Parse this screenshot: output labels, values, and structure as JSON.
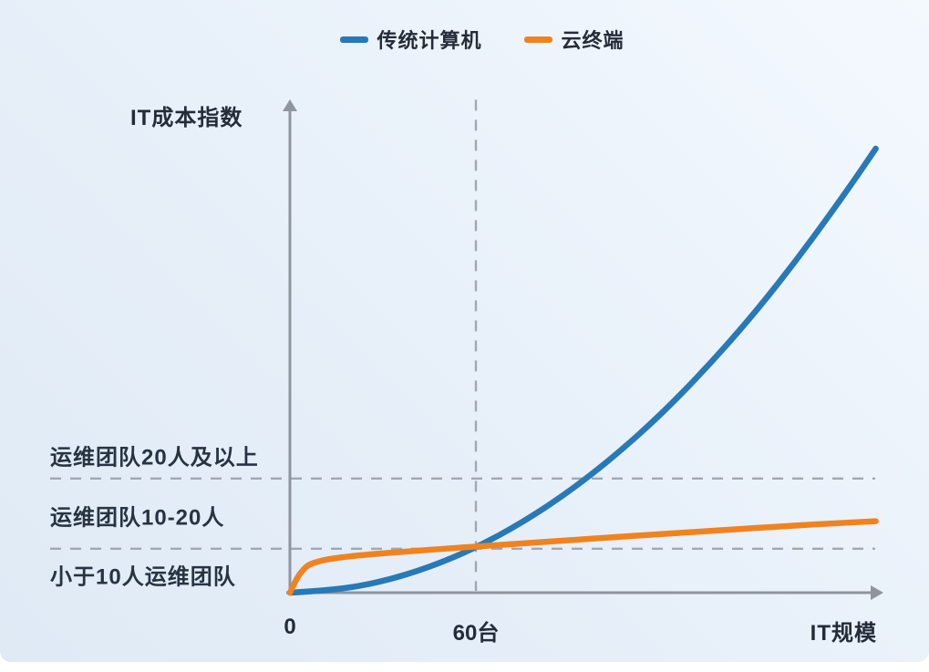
{
  "chart_data": {
    "type": "line",
    "title": "",
    "xlabel": "IT规模",
    "ylabel": "IT成本指数",
    "x_unit": "台",
    "legend_position": "top-center",
    "grid": "off",
    "axis_color": "#8e959e",
    "guide_color": "#a2a8b0",
    "text_color": "#232c38",
    "xlim": [
      0,
      191
    ],
    "ylim": [
      0,
      111
    ],
    "x_ticks": [
      {
        "value": 0,
        "label": "0"
      },
      {
        "value": 60,
        "label": "60台"
      }
    ],
    "series": [
      {
        "name": "传统计算机",
        "color": "#2779b7",
        "points": [
          [
            0,
            0
          ],
          [
            15,
            0.6
          ],
          [
            30,
            2.5
          ],
          [
            45,
            5.7
          ],
          [
            60,
            10.1
          ],
          [
            75,
            15.8
          ],
          [
            90,
            22.7
          ],
          [
            105,
            30.9
          ],
          [
            120,
            40.3
          ],
          [
            135,
            51.1
          ],
          [
            150,
            63.0
          ],
          [
            165,
            76.3
          ],
          [
            180,
            90.8
          ],
          [
            189,
            100
          ]
        ]
      },
      {
        "name": "云终端",
        "color": "#f0831f",
        "points": [
          [
            0,
            0
          ],
          [
            2,
            3.0
          ],
          [
            4,
            5.0
          ],
          [
            6,
            6.3
          ],
          [
            9,
            7.0
          ],
          [
            12,
            7.5
          ],
          [
            18,
            8.1
          ],
          [
            24,
            8.5
          ],
          [
            36,
            9.2
          ],
          [
            48,
            9.8
          ],
          [
            60,
            10.4
          ],
          [
            80,
            11.3
          ],
          [
            100,
            12.3
          ],
          [
            120,
            13.2
          ],
          [
            140,
            14.1
          ],
          [
            160,
            15.0
          ],
          [
            175,
            15.6
          ],
          [
            189,
            16.1
          ]
        ]
      }
    ],
    "guides": {
      "vertical_line_x": 60,
      "horizontal_lines_y": [
        25.7,
        9.9
      ]
    },
    "zone_labels": [
      {
        "text": "运维团队20人及以上",
        "y_index": 31.0
      },
      {
        "text": "运维团队10-20人",
        "y_index": 17.5
      },
      {
        "text": "小于10人运维团队",
        "y_index": 4.1
      }
    ],
    "annotations": {
      "crossover_x": 60,
      "crossover_note": "curves intersect near the 60台 vertical guide, just above the lower dashed threshold"
    }
  }
}
